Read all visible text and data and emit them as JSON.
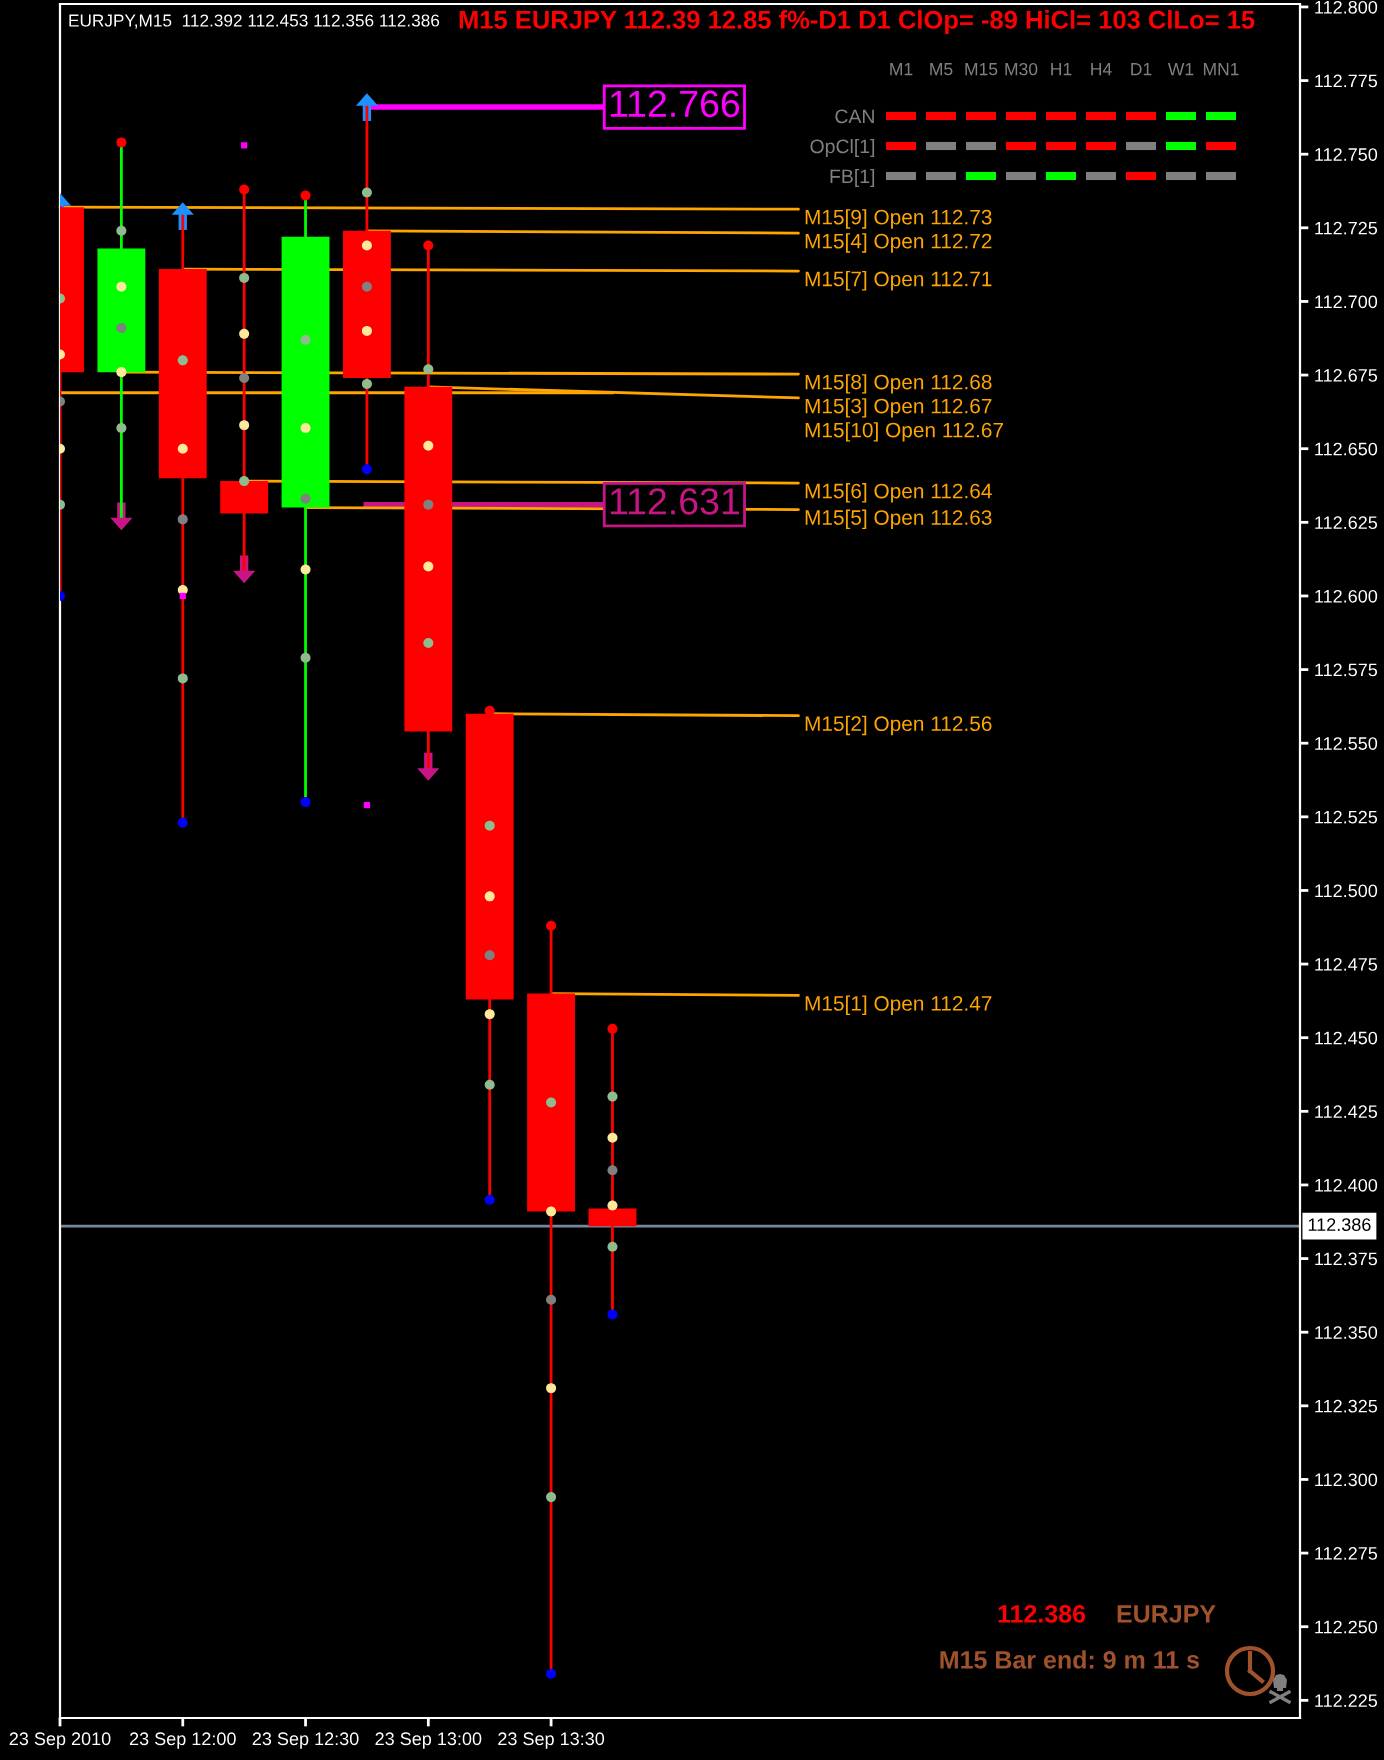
{
  "chart_data": [
    {
      "type": "candlestick",
      "title": "EURJPY,M15  112.392 112.453 112.356 112.386",
      "subtitle": "M15 EURJPY 112.39 12.85 f%-D1 D1 ClOp= -89 HiCl= 103 ClLo= 15",
      "x": [
        "2010-09-23T11:30",
        "2010-09-23T11:45",
        "2010-09-23T12:00",
        "2010-09-23T12:15",
        "2010-09-23T12:30",
        "2010-09-23T12:45",
        "2010-09-23T13:00",
        "2010-09-23T13:15",
        "2010-09-23T13:30",
        "2010-09-23T13:45"
      ],
      "ohlc": [
        [
          112.732,
          112.732,
          112.6,
          112.676
        ],
        [
          112.676,
          112.754,
          112.627,
          112.718
        ],
        [
          112.711,
          112.729,
          112.523,
          112.64
        ],
        [
          112.639,
          112.738,
          112.609,
          112.628
        ],
        [
          112.63,
          112.736,
          112.53,
          112.722
        ],
        [
          112.724,
          112.766,
          112.643,
          112.674
        ],
        [
          112.671,
          112.719,
          112.542,
          112.554
        ],
        [
          112.56,
          112.561,
          112.395,
          112.463
        ],
        [
          112.465,
          112.488,
          112.234,
          112.391
        ],
        [
          112.392,
          112.453,
          112.356,
          112.386
        ]
      ],
      "colors": [
        "#ff0000",
        "#00ff00",
        "#ff0000",
        "#ff0000",
        "#00ff00",
        "#ff0000",
        "#ff0000",
        "#ff0000",
        "#ff0000",
        "#ff0000"
      ],
      "series": [
        {
          "type": "scatter",
          "marker": "circle",
          "color": "#8fbc8f",
          "values": [
            112.701,
            112.724,
            112.68,
            112.708,
            112.687,
            112.737,
            112.677,
            112.522,
            112.428,
            112.43
          ]
        },
        {
          "type": "scatter",
          "marker": "circle",
          "color": "#fce99c",
          "values": [
            112.682,
            112.705,
            112.65,
            112.689,
            112.657,
            112.719,
            112.651,
            112.498,
            112.391,
            112.416
          ]
        },
        {
          "type": "scatter",
          "marker": "circle",
          "color": "#808080",
          "values": [
            112.666,
            112.691,
            112.626,
            112.674,
            112.633,
            112.705,
            112.631,
            112.478,
            112.361,
            112.405
          ]
        },
        {
          "type": "scatter",
          "marker": "circle",
          "color": "#fce99c",
          "values": [
            112.65,
            112.676,
            112.602,
            112.658,
            112.609,
            112.69,
            112.61,
            112.458,
            112.331,
            112.393
          ]
        },
        {
          "type": "scatter",
          "marker": "circle",
          "color": "#8fbc8f",
          "values": [
            112.631,
            112.657,
            112.572,
            112.639,
            112.579,
            112.672,
            112.584,
            112.434,
            112.294,
            112.379
          ]
        },
        {
          "type": "scatter",
          "marker": "circle",
          "color": "#ff0000",
          "values": [
            null,
            112.754,
            null,
            112.738,
            112.736,
            null,
            112.719,
            112.561,
            112.488,
            112.453
          ]
        },
        {
          "type": "scatter",
          "marker": "circle",
          "color": "#0000ff",
          "values": [
            112.6,
            null,
            112.523,
            null,
            112.53,
            112.643,
            null,
            112.395,
            112.234,
            112.356
          ]
        },
        {
          "type": "scatter",
          "marker": "triangle",
          "color": "#1e90ff",
          "values": [
            112.732,
            null,
            112.729,
            null,
            null,
            112.766,
            null,
            null,
            null,
            null
          ]
        },
        {
          "type": "scatter",
          "marker": "triangle",
          "color": "#c71585",
          "values": [
            null,
            112.627,
            null,
            112.609,
            null,
            null,
            112.542,
            null,
            null,
            null
          ]
        },
        {
          "type": "scatter",
          "marker": "square",
          "color": "#ff00ff",
          "values": [
            null,
            null,
            112.6,
            112.753,
            null,
            112.529,
            null,
            null,
            null,
            null
          ]
        }
      ],
      "xlim": [
        "2010-09-23T11:30",
        "2010-09-23T16:33"
      ],
      "xticks": [
        {
          "value": "2010-09-23T11:30",
          "label": "23 Sep 2010"
        },
        {
          "value": "2010-09-23T12:00",
          "label": "23 Sep 12:00"
        },
        {
          "value": "2010-09-23T12:30",
          "label": "23 Sep 12:30"
        },
        {
          "value": "2010-09-23T13:00",
          "label": "23 Sep 13:00"
        },
        {
          "value": "2010-09-23T13:30",
          "label": "23 Sep 13:30"
        }
      ],
      "ylim": [
        112.219,
        112.801
      ],
      "yticks": [
        {
          "value": 112.8,
          "label": "112.800"
        },
        112.775,
        {
          "value": 112.75,
          "label": "112.750"
        },
        112.725,
        {
          "value": 112.7,
          "label": "112.700"
        },
        112.675,
        {
          "value": 112.65,
          "label": "112.650"
        },
        112.625,
        {
          "value": 112.6,
          "label": "112.600"
        },
        112.575,
        {
          "value": 112.55,
          "label": "112.550"
        },
        112.525,
        {
          "value": 112.5,
          "label": "112.500"
        },
        112.475,
        {
          "value": 112.45,
          "label": "112.450"
        },
        112.425,
        {
          "value": 112.4,
          "label": "112.400"
        },
        112.375,
        {
          "value": 112.35,
          "label": "112.350"
        },
        112.325,
        {
          "value": 112.3,
          "label": "112.300"
        },
        112.275,
        {
          "value": 112.25,
          "label": "112.250"
        },
        112.225
      ],
      "ref_lines": [
        {
          "axis": "y",
          "value": 112.386,
          "label": "112.386",
          "color": "#778899"
        },
        {
          "axis": "y",
          "value": 112.669,
          "label": "M15[10] Open 112.67",
          "color": "#ffa500"
        },
        {
          "axis": "y",
          "value": 112.766,
          "label": "112.766",
          "color": "#ff00ff"
        },
        {
          "axis": "y",
          "value": 112.631,
          "label": "112.631",
          "color": "#c71585"
        }
      ],
      "annotations": [
        {
          "text": "M15[9] Open 112.73",
          "x": "2010-09-23T11:30",
          "y": 112.732
        },
        {
          "text": "M15[4] Open 112.72",
          "x": "2010-09-23T12:45",
          "y": 112.724
        },
        {
          "text": "M15[7] Open 112.71",
          "x": "2010-09-23T12:00",
          "y": 112.711
        },
        {
          "text": "M15[8] Open 112.68",
          "x": "2010-09-23T11:45",
          "y": 112.676
        },
        {
          "text": "M15[3] Open 112.67",
          "x": "2010-09-23T13:00",
          "y": 112.671
        },
        {
          "text": "M15[6] Open 112.64",
          "x": "2010-09-23T12:15",
          "y": 112.639
        },
        {
          "text": "M15[5] Open 112.63",
          "x": "2010-09-23T12:30",
          "y": 112.63
        },
        {
          "text": "M15[2] Open 112.56",
          "x": "2010-09-23T13:15",
          "y": 112.56
        },
        {
          "text": "M15[1] Open 112.47",
          "x": "2010-09-23T13:30",
          "y": 112.465
        },
        "112.386",
        "EURJPY",
        "M15 Bar end: 9 m 11 s"
      ]
    },
    {
      "type": "other",
      "categories": [
        "M1",
        "M5",
        "M15",
        "M30",
        "H1",
        "H4",
        "D1",
        "W1",
        "MN1"
      ],
      "y_categories": [
        "CAN",
        "OpCl[1]",
        "FB[1]"
      ],
      "colors": [
        [
          "#ff0000",
          "#ff0000",
          "#ff0000",
          "#ff0000",
          "#ff0000",
          "#ff0000",
          "#ff0000",
          "#00ff00",
          "#00ff00"
        ],
        [
          "#ff0000",
          "#808080",
          "#808080",
          "#ff0000",
          "#ff0000",
          "#ff0000",
          "#808080",
          "#00ff00",
          "#ff0000"
        ],
        [
          "#808080",
          "#808080",
          "#00ff00",
          "#808080",
          "#00ff00",
          "#808080",
          "#ff0000",
          "#808080",
          "#808080"
        ]
      ]
    }
  ]
}
